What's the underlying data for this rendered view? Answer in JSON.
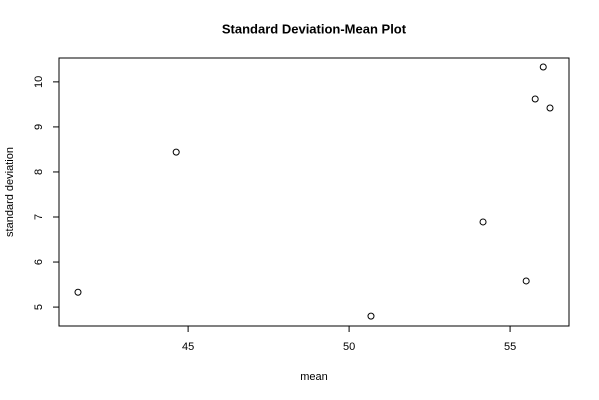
{
  "chart_data": {
    "type": "scatter",
    "title": "Standard Deviation-Mean Plot",
    "x_label": "mean",
    "y_label": "standard deviation",
    "series": [
      {
        "x": [
          41.58,
          44.63,
          50.68,
          54.16,
          55.5,
          55.78,
          56.03,
          56.24
        ],
        "values": [
          5.33,
          8.44,
          4.8,
          6.89,
          5.58,
          9.62,
          10.33,
          9.42
        ],
        "color": "#000000"
      }
    ],
    "xlim": [
      40.99,
      56.83
    ],
    "ylim": [
      4.58,
      10.53
    ],
    "xticks": [
      45,
      50,
      55
    ],
    "yticks": [
      5,
      6,
      7,
      8,
      9,
      10
    ]
  }
}
